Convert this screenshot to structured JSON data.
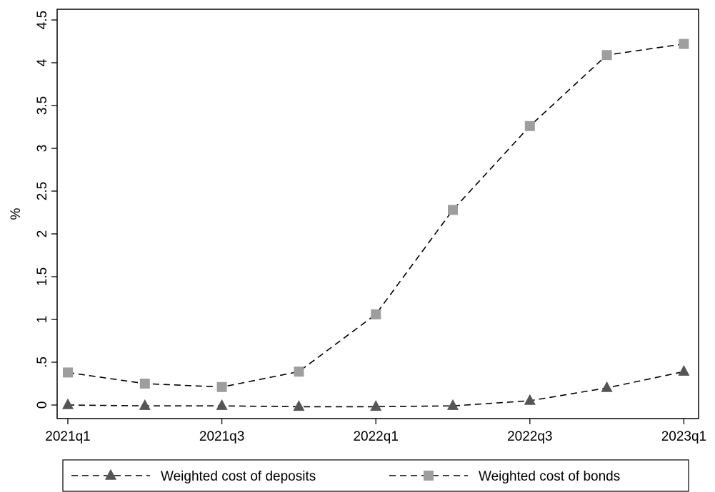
{
  "chart_data": {
    "type": "line",
    "title": "",
    "xlabel": "",
    "ylabel": "%",
    "categories": [
      "2021q1",
      "2021q2",
      "2021q3",
      "2021q4",
      "2022q1",
      "2022q2",
      "2022q3",
      "2022q4",
      "2023q1"
    ],
    "x_tick_labels": [
      "2021q1",
      "2021q3",
      "2022q1",
      "2022q3",
      "2023q1"
    ],
    "x_tick_indices": [
      0,
      2,
      4,
      6,
      8
    ],
    "ylim": [
      0,
      4.5
    ],
    "y_ticks": [
      0,
      0.5,
      1,
      1.5,
      2,
      2.5,
      3,
      3.5,
      4,
      4.5
    ],
    "y_tick_labels": [
      "0",
      ".5",
      "1",
      "1.5",
      "2",
      "2.5",
      "3",
      "3.5",
      "4",
      "4.5"
    ],
    "grid": false,
    "legend_placement": "bottom",
    "series": [
      {
        "name": "Weighted cost of deposits",
        "marker": "triangle",
        "line_style": "dashed",
        "color": "#555555",
        "values": [
          0.0,
          -0.01,
          -0.01,
          -0.02,
          -0.02,
          -0.01,
          0.05,
          0.2,
          0.39
        ]
      },
      {
        "name": "Weighted cost of bonds",
        "marker": "square",
        "line_style": "dashed",
        "color": "#9e9e9e",
        "values": [
          0.38,
          0.25,
          0.21,
          0.39,
          1.06,
          2.28,
          3.26,
          4.09,
          4.22
        ]
      }
    ]
  }
}
